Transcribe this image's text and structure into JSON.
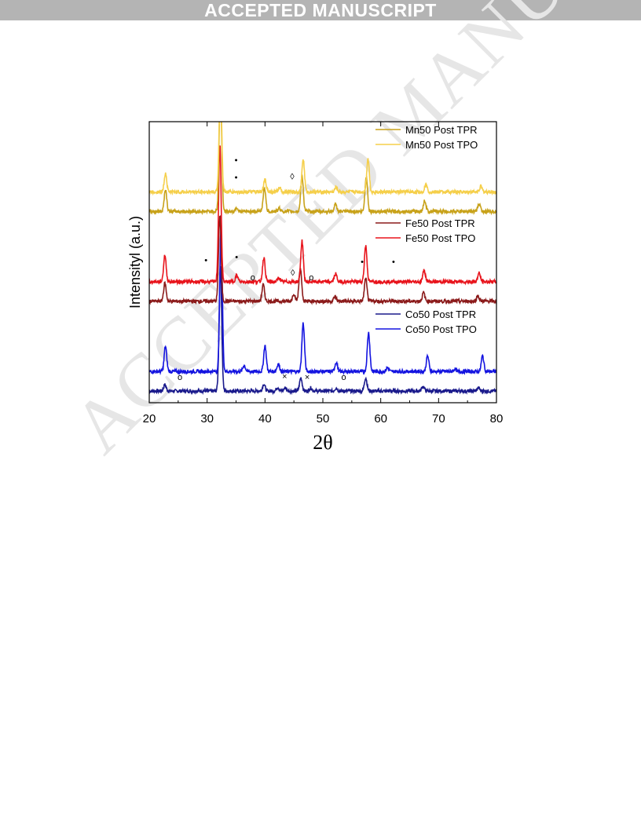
{
  "banner": {
    "text": "ACCEPTED MANUSCRIPT"
  },
  "watermark": {
    "text": "ACCEPTED MANUSCRIPT"
  },
  "chart_data": {
    "type": "line",
    "xlabel": "2θ",
    "ylabel": "Intensityl (a.u.)",
    "xlim": [
      20,
      80
    ],
    "ylim": [
      0,
      36
    ],
    "xticks": [
      "20",
      "30",
      "40",
      "50",
      "60",
      "70",
      "80"
    ],
    "grid": false,
    "legend_groups": [
      {
        "position": "top-right",
        "entries": [
          {
            "name": "Mn50 Post TPR",
            "color": "#c8a21a"
          },
          {
            "name": "Mn50 Post TPO",
            "color": "#f5cf4a"
          }
        ]
      },
      {
        "position": "middle-right",
        "entries": [
          {
            "name": "Fe50 Post TPR",
            "color": "#8b1a1a"
          },
          {
            "name": "Fe50 Post TPO",
            "color": "#e8141c"
          }
        ]
      },
      {
        "position": "lower-right",
        "entries": [
          {
            "name": "Co50 Post TPR",
            "color": "#1a1a8c"
          },
          {
            "name": "Co50 Post TPO",
            "color": "#1414e0"
          }
        ]
      }
    ],
    "series": [
      {
        "name": "Co50 Post TPR",
        "color": "#1a1a8c",
        "baseline": 1.5,
        "peaks": [
          [
            22.7,
            0.8
          ],
          [
            32.3,
            16
          ],
          [
            39.8,
            0.9
          ],
          [
            42.2,
            0.5
          ],
          [
            43.5,
            0.4
          ],
          [
            46.2,
            1.7
          ],
          [
            47.9,
            0.4
          ],
          [
            52.3,
            0.4
          ],
          [
            57.4,
            1.7
          ],
          [
            67.3,
            0.6
          ],
          [
            76.9,
            0.4
          ]
        ]
      },
      {
        "name": "Co50 Post TPO",
        "color": "#1414e0",
        "baseline": 4.0,
        "peaks": [
          [
            22.8,
            3.2
          ],
          [
            32.4,
            18.5
          ],
          [
            36.4,
            0.8
          ],
          [
            40.0,
            3.3
          ],
          [
            42.3,
            1.0
          ],
          [
            46.6,
            6.2
          ],
          [
            52.3,
            1.2
          ],
          [
            57.9,
            5.0
          ],
          [
            61.2,
            0.5
          ],
          [
            68.1,
            2.0
          ],
          [
            72.8,
            0.3
          ],
          [
            77.6,
            2.0
          ]
        ]
      },
      {
        "name": "Fe50 Post TPR",
        "color": "#8b1a1a",
        "baseline": 13.0,
        "peaks": [
          [
            22.7,
            2.3
          ],
          [
            32.2,
            11
          ],
          [
            39.7,
            2.1
          ],
          [
            45.0,
            1.0
          ],
          [
            46.1,
            4.3
          ],
          [
            52.1,
            0.6
          ],
          [
            57.4,
            2.9
          ],
          [
            67.4,
            1.1
          ],
          [
            76.8,
            0.7
          ]
        ]
      },
      {
        "name": "Fe50 Post TPO",
        "color": "#e8141c",
        "baseline": 15.5,
        "peaks": [
          [
            22.7,
            3.4
          ],
          [
            32.2,
            17.5
          ],
          [
            35.1,
            0.8
          ],
          [
            39.8,
            3.1
          ],
          [
            42.4,
            0.5
          ],
          [
            46.4,
            5.2
          ],
          [
            52.2,
            1.0
          ],
          [
            57.4,
            4.6
          ],
          [
            67.5,
            1.5
          ],
          [
            77.0,
            1.1
          ]
        ]
      },
      {
        "name": "Mn50 Post TPR",
        "color": "#c8a21a",
        "baseline": 24.5,
        "peaks": [
          [
            22.8,
            2.8
          ],
          [
            32.3,
            16
          ],
          [
            35.1,
            0.5
          ],
          [
            39.9,
            3.1
          ],
          [
            42.5,
            0.4
          ],
          [
            46.4,
            4.6
          ],
          [
            52.2,
            0.9
          ],
          [
            57.5,
            4.5
          ],
          [
            67.6,
            1.4
          ],
          [
            77.0,
            1.0
          ]
        ]
      },
      {
        "name": "Mn50 Post TPO",
        "color": "#f5cf4a",
        "baseline": 27.0,
        "peaks": [
          [
            22.8,
            2.4
          ],
          [
            32.3,
            14
          ],
          [
            40.0,
            1.6
          ],
          [
            42.5,
            0.5
          ],
          [
            46.6,
            4.2
          ],
          [
            52.3,
            0.6
          ],
          [
            57.8,
            4.3
          ],
          [
            67.8,
            1.0
          ],
          [
            77.3,
            0.7
          ]
        ]
      }
    ],
    "annotations": [
      {
        "symbol": "•",
        "x": 35.0,
        "y": 31.0
      },
      {
        "symbol": "•",
        "x": 35.0,
        "y": 28.8
      },
      {
        "symbol": "◊",
        "x": 44.7,
        "y": 28.9
      },
      {
        "symbol": "•",
        "x": 29.8,
        "y": 18.2
      },
      {
        "symbol": "•",
        "x": 35.1,
        "y": 18.6
      },
      {
        "symbol": "•",
        "x": 56.8,
        "y": 18.0
      },
      {
        "symbol": "•",
        "x": 62.2,
        "y": 18.0
      },
      {
        "symbol": "o",
        "x": 37.9,
        "y": 16.0
      },
      {
        "symbol": "◊",
        "x": 44.8,
        "y": 16.6
      },
      {
        "symbol": "o",
        "x": 48.0,
        "y": 16.0
      },
      {
        "symbol": "o",
        "x": 25.3,
        "y": 3.2
      },
      {
        "symbol": "×",
        "x": 43.4,
        "y": 3.3
      },
      {
        "symbol": "×",
        "x": 47.3,
        "y": 3.2
      },
      {
        "symbol": "o",
        "x": 53.6,
        "y": 3.2
      }
    ]
  }
}
